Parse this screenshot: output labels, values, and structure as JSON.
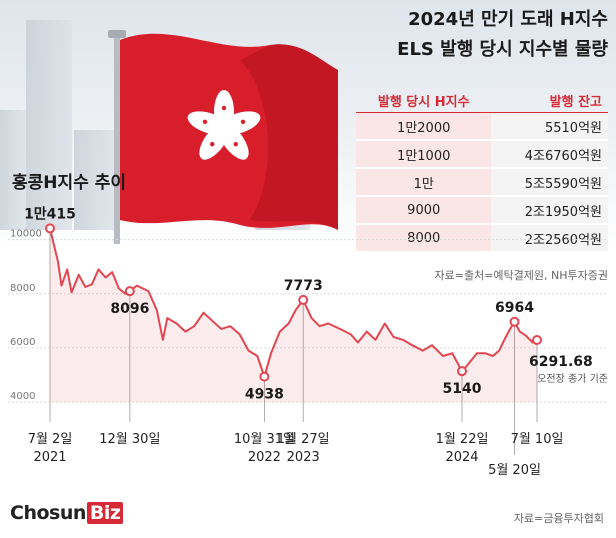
{
  "headline": {
    "line1": "2024년 만기 도래 H지수",
    "line2": "ELS 발행 당시 지수별 물량"
  },
  "table": {
    "headers": [
      "발행 당시 H지수",
      "발행 잔고"
    ],
    "rows": [
      [
        "1만2000",
        "5510억원"
      ],
      [
        "1만1000",
        "4조6760억원"
      ],
      [
        "1만",
        "5조5590억원"
      ],
      [
        "9000",
        "2조1950억원"
      ],
      [
        "8000",
        "2조2560억원"
      ]
    ],
    "source": "자료=출처=예탁결제원, NH투자증권"
  },
  "chart_title": "홍콩H지수 추이",
  "chart_data": {
    "type": "line",
    "title": "홍콩H지수 추이",
    "ylim": [
      4000,
      10800
    ],
    "y_ticks": [
      10000,
      8000,
      6000,
      4000
    ],
    "grid": true,
    "x_ticks": [
      {
        "date": "2021-07-02",
        "label": "7월 2일",
        "year": "2021"
      },
      {
        "date": "2021-12-30",
        "label": "12월 30일",
        "year": ""
      },
      {
        "date": "2022-10-31",
        "label": "10월 31일",
        "year": "2022"
      },
      {
        "date": "2023-01-27",
        "label": "1월 27일",
        "year": "2023"
      },
      {
        "date": "2024-01-22",
        "label": "1월 22일",
        "year": "2024"
      },
      {
        "date": "2024-05-20",
        "label": "5월 20일",
        "year": ""
      },
      {
        "date": "2024-07-10",
        "label": "7월 10일",
        "year": ""
      }
    ],
    "annotations": [
      {
        "date": "2021-07-02",
        "value": 10415,
        "label": "1만415",
        "pos": "above"
      },
      {
        "date": "2021-12-30",
        "value": 8096,
        "label": "8096",
        "pos": "below"
      },
      {
        "date": "2022-10-31",
        "value": 4938,
        "label": "4938",
        "pos": "below"
      },
      {
        "date": "2023-01-27",
        "value": 7773,
        "label": "7773",
        "pos": "above"
      },
      {
        "date": "2024-01-22",
        "value": 5140,
        "label": "5140",
        "pos": "below"
      },
      {
        "date": "2024-05-20",
        "value": 6964,
        "label": "6964",
        "pos": "above"
      },
      {
        "date": "2024-07-10",
        "value": 6291.68,
        "label": "6291.68",
        "pos": "right",
        "note": "오전장 종가 기준"
      }
    ],
    "series": [
      {
        "color": "#e24651",
        "points": [
          [
            "2021-07-02",
            10415
          ],
          [
            "2021-07-20",
            9200
          ],
          [
            "2021-07-28",
            8300
          ],
          [
            "2021-08-10",
            8900
          ],
          [
            "2021-08-20",
            8050
          ],
          [
            "2021-09-05",
            8700
          ],
          [
            "2021-09-20",
            8250
          ],
          [
            "2021-10-05",
            8350
          ],
          [
            "2021-10-20",
            8900
          ],
          [
            "2021-11-05",
            8600
          ],
          [
            "2021-11-20",
            8800
          ],
          [
            "2021-12-05",
            8200
          ],
          [
            "2021-12-20",
            8000
          ],
          [
            "2021-12-30",
            8096
          ],
          [
            "2022-01-15",
            8300
          ],
          [
            "2022-02-10",
            8100
          ],
          [
            "2022-03-01",
            7400
          ],
          [
            "2022-03-15",
            6300
          ],
          [
            "2022-03-25",
            7100
          ],
          [
            "2022-04-15",
            6900
          ],
          [
            "2022-05-05",
            6600
          ],
          [
            "2022-05-25",
            6800
          ],
          [
            "2022-06-15",
            7300
          ],
          [
            "2022-07-05",
            7000
          ],
          [
            "2022-07-25",
            6700
          ],
          [
            "2022-08-15",
            6800
          ],
          [
            "2022-09-05",
            6500
          ],
          [
            "2022-09-25",
            5900
          ],
          [
            "2022-10-15",
            5700
          ],
          [
            "2022-10-31",
            4938
          ],
          [
            "2022-11-15",
            5800
          ],
          [
            "2022-12-05",
            6600
          ],
          [
            "2022-12-25",
            6900
          ],
          [
            "2023-01-10",
            7400
          ],
          [
            "2023-01-27",
            7773
          ],
          [
            "2023-02-15",
            7100
          ],
          [
            "2023-03-05",
            6800
          ],
          [
            "2023-03-25",
            6900
          ],
          [
            "2023-04-20",
            6700
          ],
          [
            "2023-05-15",
            6500
          ],
          [
            "2023-05-31",
            6200
          ],
          [
            "2023-06-20",
            6600
          ],
          [
            "2023-07-10",
            6300
          ],
          [
            "2023-07-31",
            6900
          ],
          [
            "2023-08-20",
            6400
          ],
          [
            "2023-09-10",
            6300
          ],
          [
            "2023-10-01",
            6100
          ],
          [
            "2023-10-25",
            5900
          ],
          [
            "2023-11-15",
            6100
          ],
          [
            "2023-12-10",
            5700
          ],
          [
            "2023-12-31",
            5800
          ],
          [
            "2024-01-10",
            5500
          ],
          [
            "2024-01-22",
            5140
          ],
          [
            "2024-02-05",
            5400
          ],
          [
            "2024-02-25",
            5800
          ],
          [
            "2024-03-15",
            5800
          ],
          [
            "2024-04-01",
            5700
          ],
          [
            "2024-04-15",
            5900
          ],
          [
            "2024-04-30",
            6400
          ],
          [
            "2024-05-10",
            6700
          ],
          [
            "2024-05-20",
            6964
          ],
          [
            "2024-06-01",
            6600
          ],
          [
            "2024-06-15",
            6450
          ],
          [
            "2024-06-30",
            6200
          ],
          [
            "2024-07-10",
            6291.68
          ]
        ]
      }
    ]
  },
  "chart_source": "자료=금융투자협회",
  "brand": {
    "text": "Chosun",
    "box": "Biz"
  },
  "colors": {
    "accent": "#d62a36",
    "line": "#e24651",
    "flag": "#d81e2b"
  }
}
